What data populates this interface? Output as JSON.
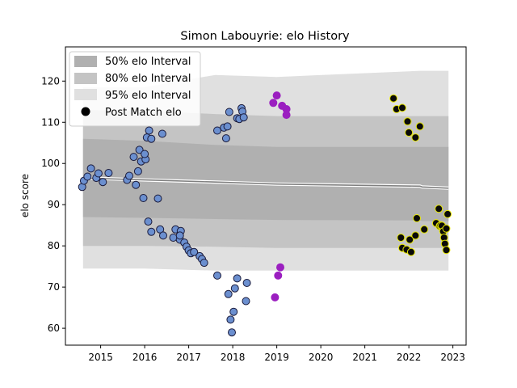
{
  "chart_data": {
    "type": "scatter",
    "title": "Simon Labouyrie: elo History",
    "xlabel": "",
    "ylabel": "elo score",
    "xlim": [
      2014.2,
      2023.3
    ],
    "ylim": [
      55.9,
      128.3
    ],
    "x_ticks": [
      2015,
      2016,
      2017,
      2018,
      2019,
      2020,
      2021,
      2022,
      2023
    ],
    "y_ticks": [
      60,
      70,
      80,
      90,
      100,
      110,
      120
    ],
    "grid": false,
    "legend_position": "top-left",
    "legend": {
      "band50": "50% elo Interval",
      "band80": "80% elo Interval",
      "band95": "95% elo Interval",
      "points": "Post Match elo"
    },
    "colors": {
      "band50": "#b0b0b0",
      "band80": "#c4c4c4",
      "band95": "#e0e0e0",
      "median": "#808080",
      "group1": "#6b8fcf",
      "group2": "#9b1fc0",
      "group3": "#0a0a0a",
      "group3_edge": "#e6e600"
    },
    "bands": [
      {
        "x": 2014.6,
        "lo95": 74.5,
        "lo80": 80.0,
        "lo50": 87.0,
        "median": 96.5,
        "hi50": 106.0,
        "hi80": 113.0,
        "hi95": 118.5
      },
      {
        "x": 2016.0,
        "lo95": 74.5,
        "lo80": 80.0,
        "lo50": 86.8,
        "median": 96.0,
        "hi50": 105.5,
        "hi80": 112.8,
        "hi95": 118.5
      },
      {
        "x": 2017.6,
        "lo95": 74.0,
        "lo80": 79.8,
        "lo50": 86.5,
        "median": 95.5,
        "hi50": 104.5,
        "hi80": 112.0,
        "hi95": 121.5
      },
      {
        "x": 2019.0,
        "lo95": 74.0,
        "lo80": 79.5,
        "lo50": 86.3,
        "median": 95.0,
        "hi50": 104.0,
        "hi80": 111.5,
        "hi95": 121.0
      },
      {
        "x": 2022.25,
        "lo95": 74.0,
        "lo80": 79.5,
        "lo50": 86.2,
        "median": 94.5,
        "hi50": 104.0,
        "hi80": 111.5,
        "hi95": 122.5
      },
      {
        "x": 2022.3,
        "lo95": 74.0,
        "lo80": 79.5,
        "lo50": 86.0,
        "median": 94.3,
        "hi50": 104.0,
        "hi80": 111.5,
        "hi95": 122.5
      },
      {
        "x": 2022.9,
        "lo95": 74.0,
        "lo80": 79.5,
        "lo50": 86.0,
        "median": 94.0,
        "hi50": 104.0,
        "hi80": 111.5,
        "hi95": 122.5
      }
    ],
    "series": [
      {
        "group": "group1",
        "points": [
          [
            2014.58,
            94.3
          ],
          [
            2014.62,
            95.8
          ],
          [
            2014.7,
            96.8
          ],
          [
            2014.78,
            98.8
          ],
          [
            2014.9,
            96.5
          ],
          [
            2014.95,
            97.6
          ],
          [
            2015.05,
            95.5
          ],
          [
            2015.18,
            97.7
          ],
          [
            2015.6,
            96.0
          ],
          [
            2015.65,
            97.0
          ],
          [
            2015.75,
            101.6
          ],
          [
            2015.8,
            94.8
          ],
          [
            2015.85,
            98.1
          ],
          [
            2015.88,
            103.3
          ],
          [
            2015.92,
            100.5
          ],
          [
            2015.97,
            91.6
          ],
          [
            2016.02,
            101.0
          ],
          [
            2016.0,
            102.3
          ],
          [
            2016.05,
            106.3
          ],
          [
            2016.1,
            108.0
          ],
          [
            2016.15,
            106.0
          ],
          [
            2016.08,
            85.9
          ],
          [
            2016.15,
            83.4
          ],
          [
            2016.3,
            91.5
          ],
          [
            2016.35,
            84.0
          ],
          [
            2016.42,
            82.5
          ],
          [
            2016.4,
            107.2
          ],
          [
            2016.65,
            82.0
          ],
          [
            2016.7,
            84.0
          ],
          [
            2016.8,
            81.5
          ],
          [
            2016.82,
            83.6
          ],
          [
            2016.8,
            82.5
          ],
          [
            2016.9,
            80.8
          ],
          [
            2016.95,
            79.8
          ],
          [
            2017.0,
            78.9
          ],
          [
            2017.05,
            78.2
          ],
          [
            2017.12,
            78.5
          ],
          [
            2017.25,
            77.5
          ],
          [
            2017.3,
            76.8
          ],
          [
            2017.35,
            75.9
          ],
          [
            2017.65,
            72.8
          ],
          [
            2017.65,
            108.0
          ],
          [
            2017.8,
            108.7
          ],
          [
            2017.85,
            106.1
          ],
          [
            2017.88,
            109.0
          ],
          [
            2017.92,
            112.5
          ],
          [
            2017.9,
            68.3
          ],
          [
            2017.95,
            62.1
          ],
          [
            2017.98,
            59.0
          ],
          [
            2018.02,
            64.0
          ],
          [
            2018.05,
            69.7
          ],
          [
            2018.1,
            72.1
          ],
          [
            2018.1,
            111.0
          ],
          [
            2018.15,
            110.8
          ],
          [
            2018.2,
            113.4
          ],
          [
            2018.22,
            112.6
          ],
          [
            2018.25,
            111.2
          ],
          [
            2018.3,
            66.6
          ],
          [
            2018.32,
            71.0
          ]
        ]
      },
      {
        "group": "group2",
        "points": [
          [
            2018.92,
            114.7
          ],
          [
            2018.96,
            67.5
          ],
          [
            2019.0,
            116.5
          ],
          [
            2019.03,
            72.8
          ],
          [
            2019.08,
            74.8
          ],
          [
            2019.12,
            114.0
          ],
          [
            2019.22,
            113.2
          ],
          [
            2019.22,
            111.8
          ]
        ]
      },
      {
        "group": "group3",
        "points": [
          [
            2021.65,
            115.8
          ],
          [
            2021.72,
            113.2
          ],
          [
            2021.85,
            113.5
          ],
          [
            2021.82,
            82.0
          ],
          [
            2021.85,
            79.5
          ],
          [
            2021.95,
            79.1
          ],
          [
            2021.97,
            110.2
          ],
          [
            2022.0,
            107.5
          ],
          [
            2022.02,
            81.5
          ],
          [
            2022.05,
            78.5
          ],
          [
            2022.15,
            106.3
          ],
          [
            2022.15,
            82.5
          ],
          [
            2022.18,
            86.7
          ],
          [
            2022.25,
            109.0
          ],
          [
            2022.35,
            84.0
          ],
          [
            2022.62,
            85.5
          ],
          [
            2022.68,
            89.0
          ],
          [
            2022.7,
            84.8
          ],
          [
            2022.72,
            85.0
          ],
          [
            2022.75,
            84.9
          ],
          [
            2022.78,
            83.5
          ],
          [
            2022.8,
            82.0
          ],
          [
            2022.82,
            80.5
          ],
          [
            2022.85,
            79.0
          ],
          [
            2022.85,
            84.2
          ],
          [
            2022.88,
            87.7
          ]
        ]
      }
    ]
  }
}
